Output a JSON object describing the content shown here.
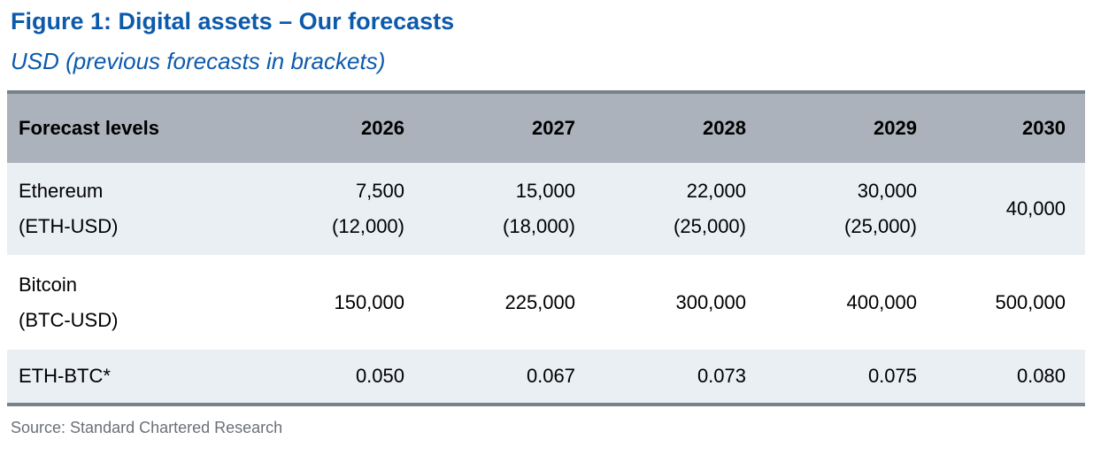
{
  "figure": {
    "title": "Figure 1: Digital assets – Our forecasts",
    "subtitle": "USD (previous forecasts in brackets)",
    "source": "Source: Standard Chartered Research"
  },
  "colors": {
    "accent_blue": "#0d5aab",
    "header_bg": "#abb2bb",
    "alt_row_bg": "#eaeff4",
    "rule_gray": "#79818a",
    "source_text_gray": "#6b7076"
  },
  "chart_data": {
    "type": "table",
    "title": "Figure 1: Digital assets – Our forecasts",
    "subtitle": "USD (previous forecasts in brackets)",
    "source": "Source: Standard Chartered Research",
    "columns": [
      "Forecast levels",
      "2026",
      "2027",
      "2028",
      "2029",
      "2030"
    ],
    "rows": [
      {
        "name": "Ethereum (ETH-USD)",
        "label_lines": [
          "Ethereum",
          "(ETH-USD)"
        ],
        "cells": [
          [
            "7,500",
            "(12,000)"
          ],
          [
            "15,000",
            "(18,000)"
          ],
          [
            "22,000",
            "(25,000)"
          ],
          [
            "30,000",
            "(25,000)"
          ],
          [
            "40,000"
          ]
        ],
        "forecast": [
          7500,
          15000,
          22000,
          30000,
          40000
        ],
        "previous_forecast": [
          12000,
          18000,
          25000,
          25000,
          null
        ]
      },
      {
        "name": "Bitcoin (BTC-USD)",
        "label_lines": [
          "Bitcoin",
          "(BTC-USD)"
        ],
        "cells": [
          [
            "150,000"
          ],
          [
            "225,000"
          ],
          [
            "300,000"
          ],
          [
            "400,000"
          ],
          [
            "500,000"
          ]
        ],
        "forecast": [
          150000,
          225000,
          300000,
          400000,
          500000
        ],
        "previous_forecast": [
          null,
          null,
          null,
          null,
          null
        ]
      },
      {
        "name": "ETH-BTC*",
        "label_lines": [
          "ETH-BTC*"
        ],
        "cells": [
          [
            "0.050"
          ],
          [
            "0.067"
          ],
          [
            "0.073"
          ],
          [
            "0.075"
          ],
          [
            "0.080"
          ]
        ],
        "forecast": [
          0.05,
          0.067,
          0.073,
          0.075,
          0.08
        ],
        "previous_forecast": [
          null,
          null,
          null,
          null,
          null
        ]
      }
    ]
  }
}
